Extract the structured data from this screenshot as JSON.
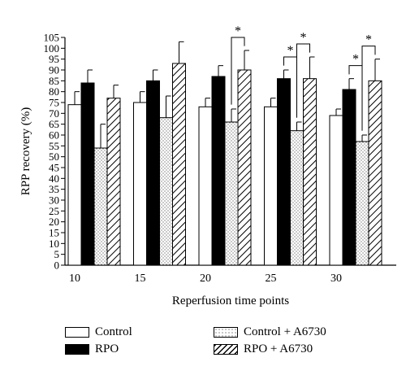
{
  "chart_data": {
    "type": "bar",
    "xlabel": "Reperfusion time points",
    "ylabel": "RPP recovery (%)",
    "ylim": [
      0,
      105
    ],
    "yticks": [
      0,
      5,
      10,
      15,
      20,
      25,
      30,
      35,
      40,
      45,
      50,
      55,
      60,
      65,
      70,
      75,
      80,
      85,
      90,
      95,
      100,
      105
    ],
    "categories": [
      "10",
      "15",
      "20",
      "25",
      "30"
    ],
    "series": [
      {
        "name": "Control",
        "pattern": "white",
        "values": [
          74,
          75,
          73,
          73,
          69
        ],
        "errors": [
          6,
          5,
          4,
          4,
          3
        ]
      },
      {
        "name": "RPO",
        "pattern": "black",
        "values": [
          84,
          85,
          87,
          86,
          81
        ],
        "errors": [
          6,
          5,
          5,
          4,
          5
        ]
      },
      {
        "name": "Control + A6730",
        "pattern": "dotted",
        "values": [
          54,
          68,
          66,
          62,
          57
        ],
        "errors": [
          11,
          10,
          6,
          4,
          3
        ]
      },
      {
        "name": "RPO + A6730",
        "pattern": "hatched",
        "values": [
          77,
          93,
          90,
          86,
          85
        ],
        "errors": [
          6,
          10,
          9,
          10,
          10
        ]
      }
    ],
    "significance": [
      {
        "category": "20",
        "pair": [
          "Control + A6730",
          "RPO + A6730"
        ],
        "label": "*"
      },
      {
        "category": "25",
        "pair": [
          "RPO",
          "Control + A6730"
        ],
        "label": "*"
      },
      {
        "category": "25",
        "pair": [
          "Control + A6730",
          "RPO + A6730"
        ],
        "label": "*"
      },
      {
        "category": "30",
        "pair": [
          "RPO",
          "Control + A6730"
        ],
        "label": "*"
      },
      {
        "category": "30",
        "pair": [
          "Control + A6730",
          "RPO + A6730"
        ],
        "label": "*"
      }
    ],
    "grid": false,
    "legend_position": "bottom"
  },
  "legend": {
    "items": [
      {
        "label": "Control",
        "pattern": "white"
      },
      {
        "label": "RPO",
        "pattern": "black"
      },
      {
        "label": "Control + A6730",
        "pattern": "dotted"
      },
      {
        "label": "RPO + A6730",
        "pattern": "hatched"
      }
    ]
  }
}
